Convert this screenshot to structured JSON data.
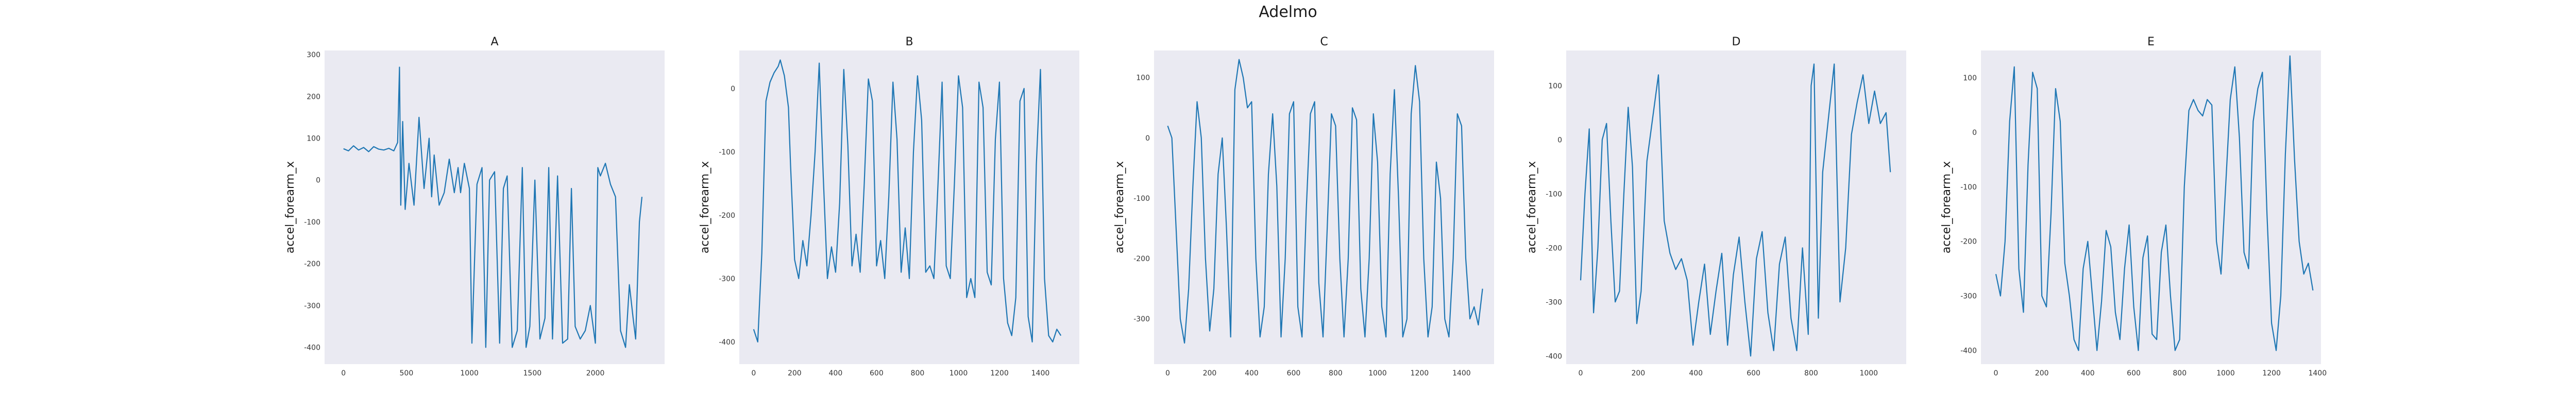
{
  "figure": {
    "title": "Adelmo"
  },
  "chart_data": [
    {
      "type": "line",
      "title": "A",
      "ylabel": "accel_forearm_x",
      "xlabel": "",
      "xlim": [
        -150,
        2550
      ],
      "ylim": [
        -440,
        310
      ],
      "xticks": [
        0,
        500,
        1000,
        1500,
        2000
      ],
      "yticks": [
        -400,
        -300,
        -200,
        -100,
        0,
        100,
        200,
        300
      ],
      "grid": false,
      "series_color": "#1f77b4",
      "series": [
        {
          "x": [
            0,
            40,
            80,
            120,
            160,
            200,
            240,
            280,
            320,
            360,
            400,
            430,
            445,
            455,
            470,
            490,
            520,
            560,
            600,
            640,
            680,
            700,
            720,
            760,
            800,
            840,
            880,
            910,
            930,
            960,
            1000,
            1020,
            1060,
            1100,
            1130,
            1160,
            1200,
            1240,
            1270,
            1300,
            1340,
            1380,
            1420,
            1450,
            1480,
            1520,
            1560,
            1600,
            1630,
            1660,
            1700,
            1740,
            1780,
            1810,
            1840,
            1880,
            1920,
            1960,
            2000,
            2020,
            2040,
            2080,
            2120,
            2160,
            2200,
            2240,
            2270,
            2300,
            2320,
            2350,
            2370
          ],
          "y": [
            75,
            70,
            82,
            72,
            78,
            68,
            80,
            74,
            72,
            76,
            70,
            90,
            270,
            -60,
            140,
            -70,
            40,
            -60,
            150,
            -20,
            100,
            -40,
            60,
            -60,
            -30,
            50,
            -30,
            30,
            -30,
            40,
            -20,
            -390,
            -10,
            30,
            -400,
            0,
            20,
            -390,
            -20,
            10,
            -400,
            -360,
            30,
            -400,
            -350,
            0,
            -380,
            -330,
            30,
            -380,
            10,
            -390,
            -380,
            -20,
            -350,
            -380,
            -360,
            -300,
            -390,
            30,
            10,
            40,
            -10,
            -40,
            -360,
            -400,
            -250,
            -330,
            -380,
            -100,
            -40
          ]
        }
      ]
    },
    {
      "type": "line",
      "title": "B",
      "ylabel": "accel_forearm_x",
      "xlabel": "",
      "xlim": [
        -70,
        1590
      ],
      "ylim": [
        -435,
        60
      ],
      "xticks": [
        0,
        200,
        400,
        600,
        800,
        1000,
        1200,
        1400
      ],
      "yticks": [
        -400,
        -300,
        -200,
        -100,
        0
      ],
      "grid": false,
      "series_color": "#1f77b4",
      "series": [
        {
          "x": [
            0,
            20,
            40,
            60,
            80,
            100,
            120,
            130,
            150,
            170,
            180,
            200,
            220,
            240,
            260,
            280,
            300,
            320,
            340,
            360,
            380,
            400,
            420,
            440,
            460,
            480,
            500,
            520,
            540,
            560,
            580,
            600,
            620,
            640,
            660,
            680,
            700,
            720,
            740,
            760,
            780,
            800,
            820,
            840,
            860,
            880,
            900,
            920,
            940,
            960,
            980,
            1000,
            1020,
            1040,
            1060,
            1080,
            1100,
            1120,
            1140,
            1160,
            1180,
            1200,
            1220,
            1240,
            1260,
            1280,
            1300,
            1320,
            1340,
            1360,
            1380,
            1400,
            1420,
            1440,
            1460,
            1480,
            1500
          ],
          "y": [
            -380,
            -400,
            -260,
            -20,
            10,
            25,
            35,
            45,
            20,
            -30,
            -120,
            -270,
            -300,
            -240,
            -280,
            -200,
            -100,
            40,
            -140,
            -300,
            -250,
            -290,
            -180,
            30,
            -90,
            -280,
            -230,
            -290,
            -150,
            15,
            -20,
            -280,
            -240,
            -300,
            -170,
            10,
            -80,
            -290,
            -220,
            -300,
            -100,
            20,
            -50,
            -290,
            -280,
            -300,
            -150,
            10,
            -280,
            -300,
            -150,
            20,
            -30,
            -330,
            -300,
            -330,
            10,
            -30,
            -290,
            -310,
            -80,
            10,
            -300,
            -370,
            -390,
            -330,
            -20,
            0,
            -360,
            -400,
            -120,
            30,
            -300,
            -390,
            -400,
            -380,
            -390
          ]
        }
      ]
    },
    {
      "type": "line",
      "title": "C",
      "ylabel": "accel_forearm_x",
      "xlabel": "",
      "xlim": [
        -65,
        1555
      ],
      "ylim": [
        -375,
        145
      ],
      "xticks": [
        0,
        200,
        400,
        600,
        800,
        1000,
        1200,
        1400
      ],
      "yticks": [
        -300,
        -200,
        -100,
        0,
        100
      ],
      "grid": false,
      "series_color": "#1f77b4",
      "series": [
        {
          "x": [
            0,
            20,
            40,
            60,
            80,
            100,
            120,
            140,
            160,
            180,
            200,
            220,
            240,
            260,
            280,
            300,
            320,
            340,
            360,
            380,
            400,
            420,
            440,
            460,
            480,
            500,
            520,
            540,
            560,
            580,
            600,
            620,
            640,
            660,
            680,
            700,
            720,
            740,
            760,
            780,
            800,
            820,
            840,
            860,
            880,
            900,
            920,
            940,
            960,
            980,
            1000,
            1020,
            1040,
            1060,
            1080,
            1100,
            1120,
            1140,
            1160,
            1180,
            1200,
            1220,
            1240,
            1260,
            1280,
            1300,
            1320,
            1340,
            1360,
            1380,
            1400,
            1420,
            1440,
            1460,
            1480,
            1500
          ],
          "y": [
            20,
            0,
            -150,
            -300,
            -340,
            -250,
            -80,
            60,
            0,
            -200,
            -320,
            -250,
            -60,
            0,
            -150,
            -330,
            80,
            130,
            100,
            50,
            60,
            -200,
            -330,
            -280,
            -60,
            40,
            -80,
            -330,
            -200,
            40,
            60,
            -280,
            -330,
            -120,
            40,
            60,
            -240,
            -330,
            -150,
            40,
            20,
            -200,
            -330,
            -200,
            50,
            30,
            -250,
            -330,
            -200,
            40,
            -40,
            -280,
            -330,
            -60,
            80,
            -100,
            -330,
            -300,
            40,
            120,
            60,
            -200,
            -330,
            -280,
            -40,
            -100,
            -300,
            -330,
            -200,
            40,
            20,
            -200,
            -300,
            -280,
            -310,
            -250
          ]
        }
      ]
    },
    {
      "type": "line",
      "title": "D",
      "ylabel": "accel_forearm_x",
      "xlabel": "",
      "xlim": [
        -50,
        1130
      ],
      "ylim": [
        -415,
        165
      ],
      "xticks": [
        0,
        200,
        400,
        600,
        800,
        1000
      ],
      "yticks": [
        -400,
        -300,
        -200,
        -100,
        0,
        100
      ],
      "grid": false,
      "series_color": "#1f77b4",
      "series": [
        {
          "x": [
            0,
            15,
            30,
            45,
            60,
            75,
            90,
            105,
            120,
            135,
            150,
            165,
            180,
            195,
            210,
            230,
            250,
            270,
            290,
            310,
            330,
            350,
            370,
            390,
            410,
            430,
            450,
            470,
            490,
            510,
            530,
            550,
            570,
            590,
            610,
            630,
            650,
            670,
            690,
            710,
            730,
            750,
            770,
            790,
            800,
            810,
            825,
            840,
            860,
            880,
            900,
            920,
            940,
            960,
            980,
            1000,
            1020,
            1040,
            1060,
            1075
          ],
          "y": [
            -260,
            -100,
            20,
            -320,
            -200,
            0,
            30,
            -150,
            -300,
            -280,
            -100,
            60,
            -50,
            -340,
            -280,
            -40,
            40,
            120,
            -150,
            -210,
            -240,
            -220,
            -260,
            -380,
            -300,
            -230,
            -360,
            -280,
            -210,
            -380,
            -250,
            -180,
            -300,
            -400,
            -220,
            -170,
            -320,
            -390,
            -230,
            -180,
            -330,
            -390,
            -200,
            -360,
            100,
            140,
            -330,
            -60,
            40,
            140,
            -300,
            -200,
            10,
            70,
            120,
            30,
            90,
            30,
            50,
            -60
          ]
        }
      ]
    },
    {
      "type": "line",
      "title": "E",
      "ylabel": "accel_forearm_x",
      "xlabel": "",
      "xlim": [
        -65,
        1415
      ],
      "ylim": [
        -425,
        150
      ],
      "xticks": [
        0,
        200,
        400,
        600,
        800,
        1000,
        1200,
        1400
      ],
      "yticks": [
        -400,
        -300,
        -200,
        -100,
        0,
        100
      ],
      "grid": false,
      "series_color": "#1f77b4",
      "series": [
        {
          "x": [
            0,
            20,
            40,
            60,
            80,
            100,
            120,
            140,
            160,
            180,
            200,
            220,
            240,
            260,
            280,
            300,
            320,
            340,
            360,
            380,
            400,
            420,
            440,
            460,
            480,
            500,
            520,
            540,
            560,
            580,
            600,
            620,
            640,
            660,
            680,
            700,
            720,
            740,
            760,
            780,
            800,
            820,
            840,
            860,
            880,
            900,
            920,
            940,
            960,
            980,
            1000,
            1020,
            1040,
            1060,
            1080,
            1100,
            1120,
            1140,
            1160,
            1180,
            1200,
            1220,
            1240,
            1260,
            1280,
            1300,
            1320,
            1340,
            1360,
            1380
          ],
          "y": [
            -260,
            -300,
            -200,
            20,
            120,
            -250,
            -330,
            -60,
            110,
            80,
            -300,
            -320,
            -150,
            80,
            20,
            -240,
            -300,
            -380,
            -400,
            -250,
            -200,
            -300,
            -400,
            -310,
            -180,
            -210,
            -330,
            -380,
            -250,
            -170,
            -320,
            -400,
            -230,
            -190,
            -370,
            -380,
            -220,
            -170,
            -300,
            -400,
            -380,
            -100,
            40,
            60,
            40,
            30,
            60,
            50,
            -200,
            -260,
            -100,
            60,
            120,
            -10,
            -220,
            -250,
            20,
            80,
            110,
            -150,
            -350,
            -400,
            -300,
            -40,
            140,
            -50,
            -200,
            -260,
            -240,
            -290
          ]
        }
      ]
    }
  ]
}
